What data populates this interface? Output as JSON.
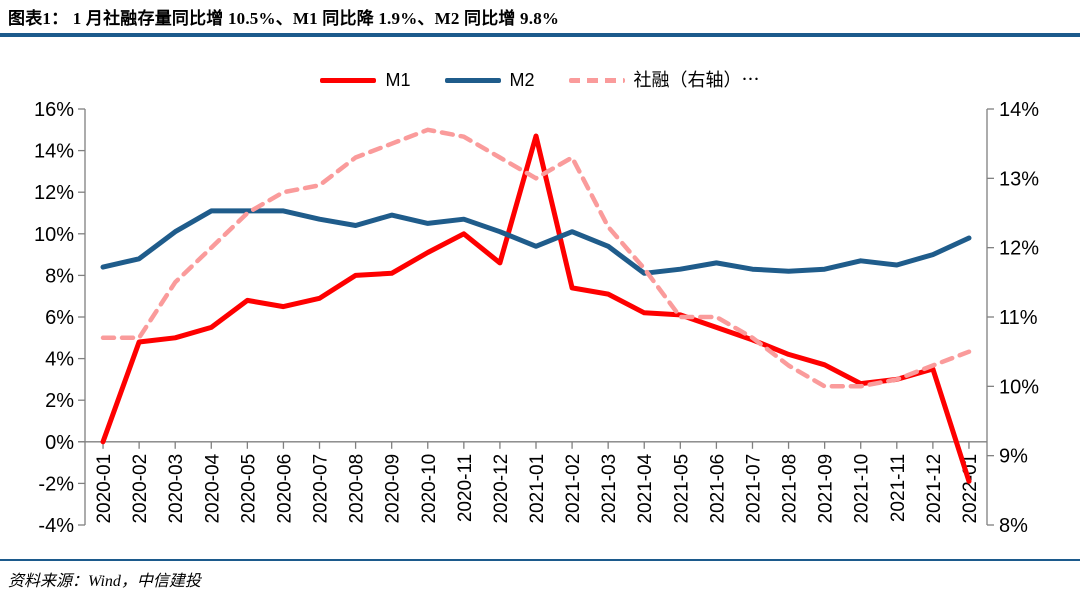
{
  "header": {
    "title": "图表1：  1 月社融存量同比增 10.5%、M1 同比降 1.9%、M2 同比增 9.8%"
  },
  "footer": {
    "source": "资料来源：Wind，中信建投"
  },
  "colors": {
    "m1_red": "#FE0000",
    "m2_blue": "#1F5C8B",
    "shehuirong_pink": "#FA9B9B",
    "rule_blue": "#1C5A8C",
    "axis_gray": "#808080",
    "text_black": "#000000"
  },
  "chart_data": {
    "type": "line",
    "title": "图表1：1月社融存量同比增10.5%、M1同比降1.9%、M2同比增9.8%",
    "grid": false,
    "legend_position": "top",
    "categories": [
      "2020-01",
      "2020-02",
      "2020-03",
      "2020-04",
      "2020-05",
      "2020-06",
      "2020-07",
      "2020-08",
      "2020-09",
      "2020-10",
      "2020-11",
      "2020-12",
      "2021-01",
      "2021-02",
      "2021-03",
      "2021-04",
      "2021-05",
      "2021-06",
      "2021-07",
      "2021-08",
      "2021-09",
      "2021-10",
      "2021-11",
      "2021-12",
      "2022-01"
    ],
    "series": [
      {
        "name": "M1",
        "axis": "left",
        "style": "solid",
        "color": "#FE0000",
        "values": [
          0.0,
          4.8,
          5.0,
          5.5,
          6.8,
          6.5,
          6.9,
          8.0,
          8.1,
          9.1,
          10.0,
          8.6,
          14.7,
          7.4,
          7.1,
          6.2,
          6.1,
          5.5,
          4.9,
          4.2,
          3.7,
          2.8,
          3.0,
          3.5,
          -1.9
        ]
      },
      {
        "name": "M2",
        "axis": "left",
        "style": "solid",
        "color": "#1F5C8B",
        "values": [
          8.4,
          8.8,
          10.1,
          11.1,
          11.1,
          11.1,
          10.7,
          10.4,
          10.9,
          10.5,
          10.7,
          10.1,
          9.4,
          10.1,
          9.4,
          8.1,
          8.3,
          8.6,
          8.3,
          8.2,
          8.3,
          8.7,
          8.5,
          9.0,
          9.8
        ]
      },
      {
        "name": "社融（右轴）⋯",
        "axis": "right",
        "style": "dashed",
        "color": "#FA9B9B",
        "values": [
          10.7,
          10.7,
          11.5,
          12.0,
          12.5,
          12.8,
          12.9,
          13.3,
          13.5,
          13.7,
          13.6,
          13.3,
          13.0,
          13.3,
          12.3,
          11.7,
          11.0,
          11.0,
          10.7,
          10.3,
          10.0,
          10.0,
          10.1,
          10.3,
          10.5
        ]
      }
    ],
    "left_axis": {
      "min": -4,
      "max": 16,
      "step": 2,
      "tick_labels": [
        "16%",
        "14%",
        "12%",
        "10%",
        "8%",
        "6%",
        "4%",
        "2%",
        "0%",
        "-2%",
        "-4%"
      ]
    },
    "right_axis": {
      "min": 8,
      "max": 14,
      "step": 1,
      "tick_labels": [
        "14%",
        "13%",
        "12%",
        "11%",
        "10%",
        "9%",
        "8%"
      ]
    },
    "x_axis_cross_left_value": 0
  }
}
